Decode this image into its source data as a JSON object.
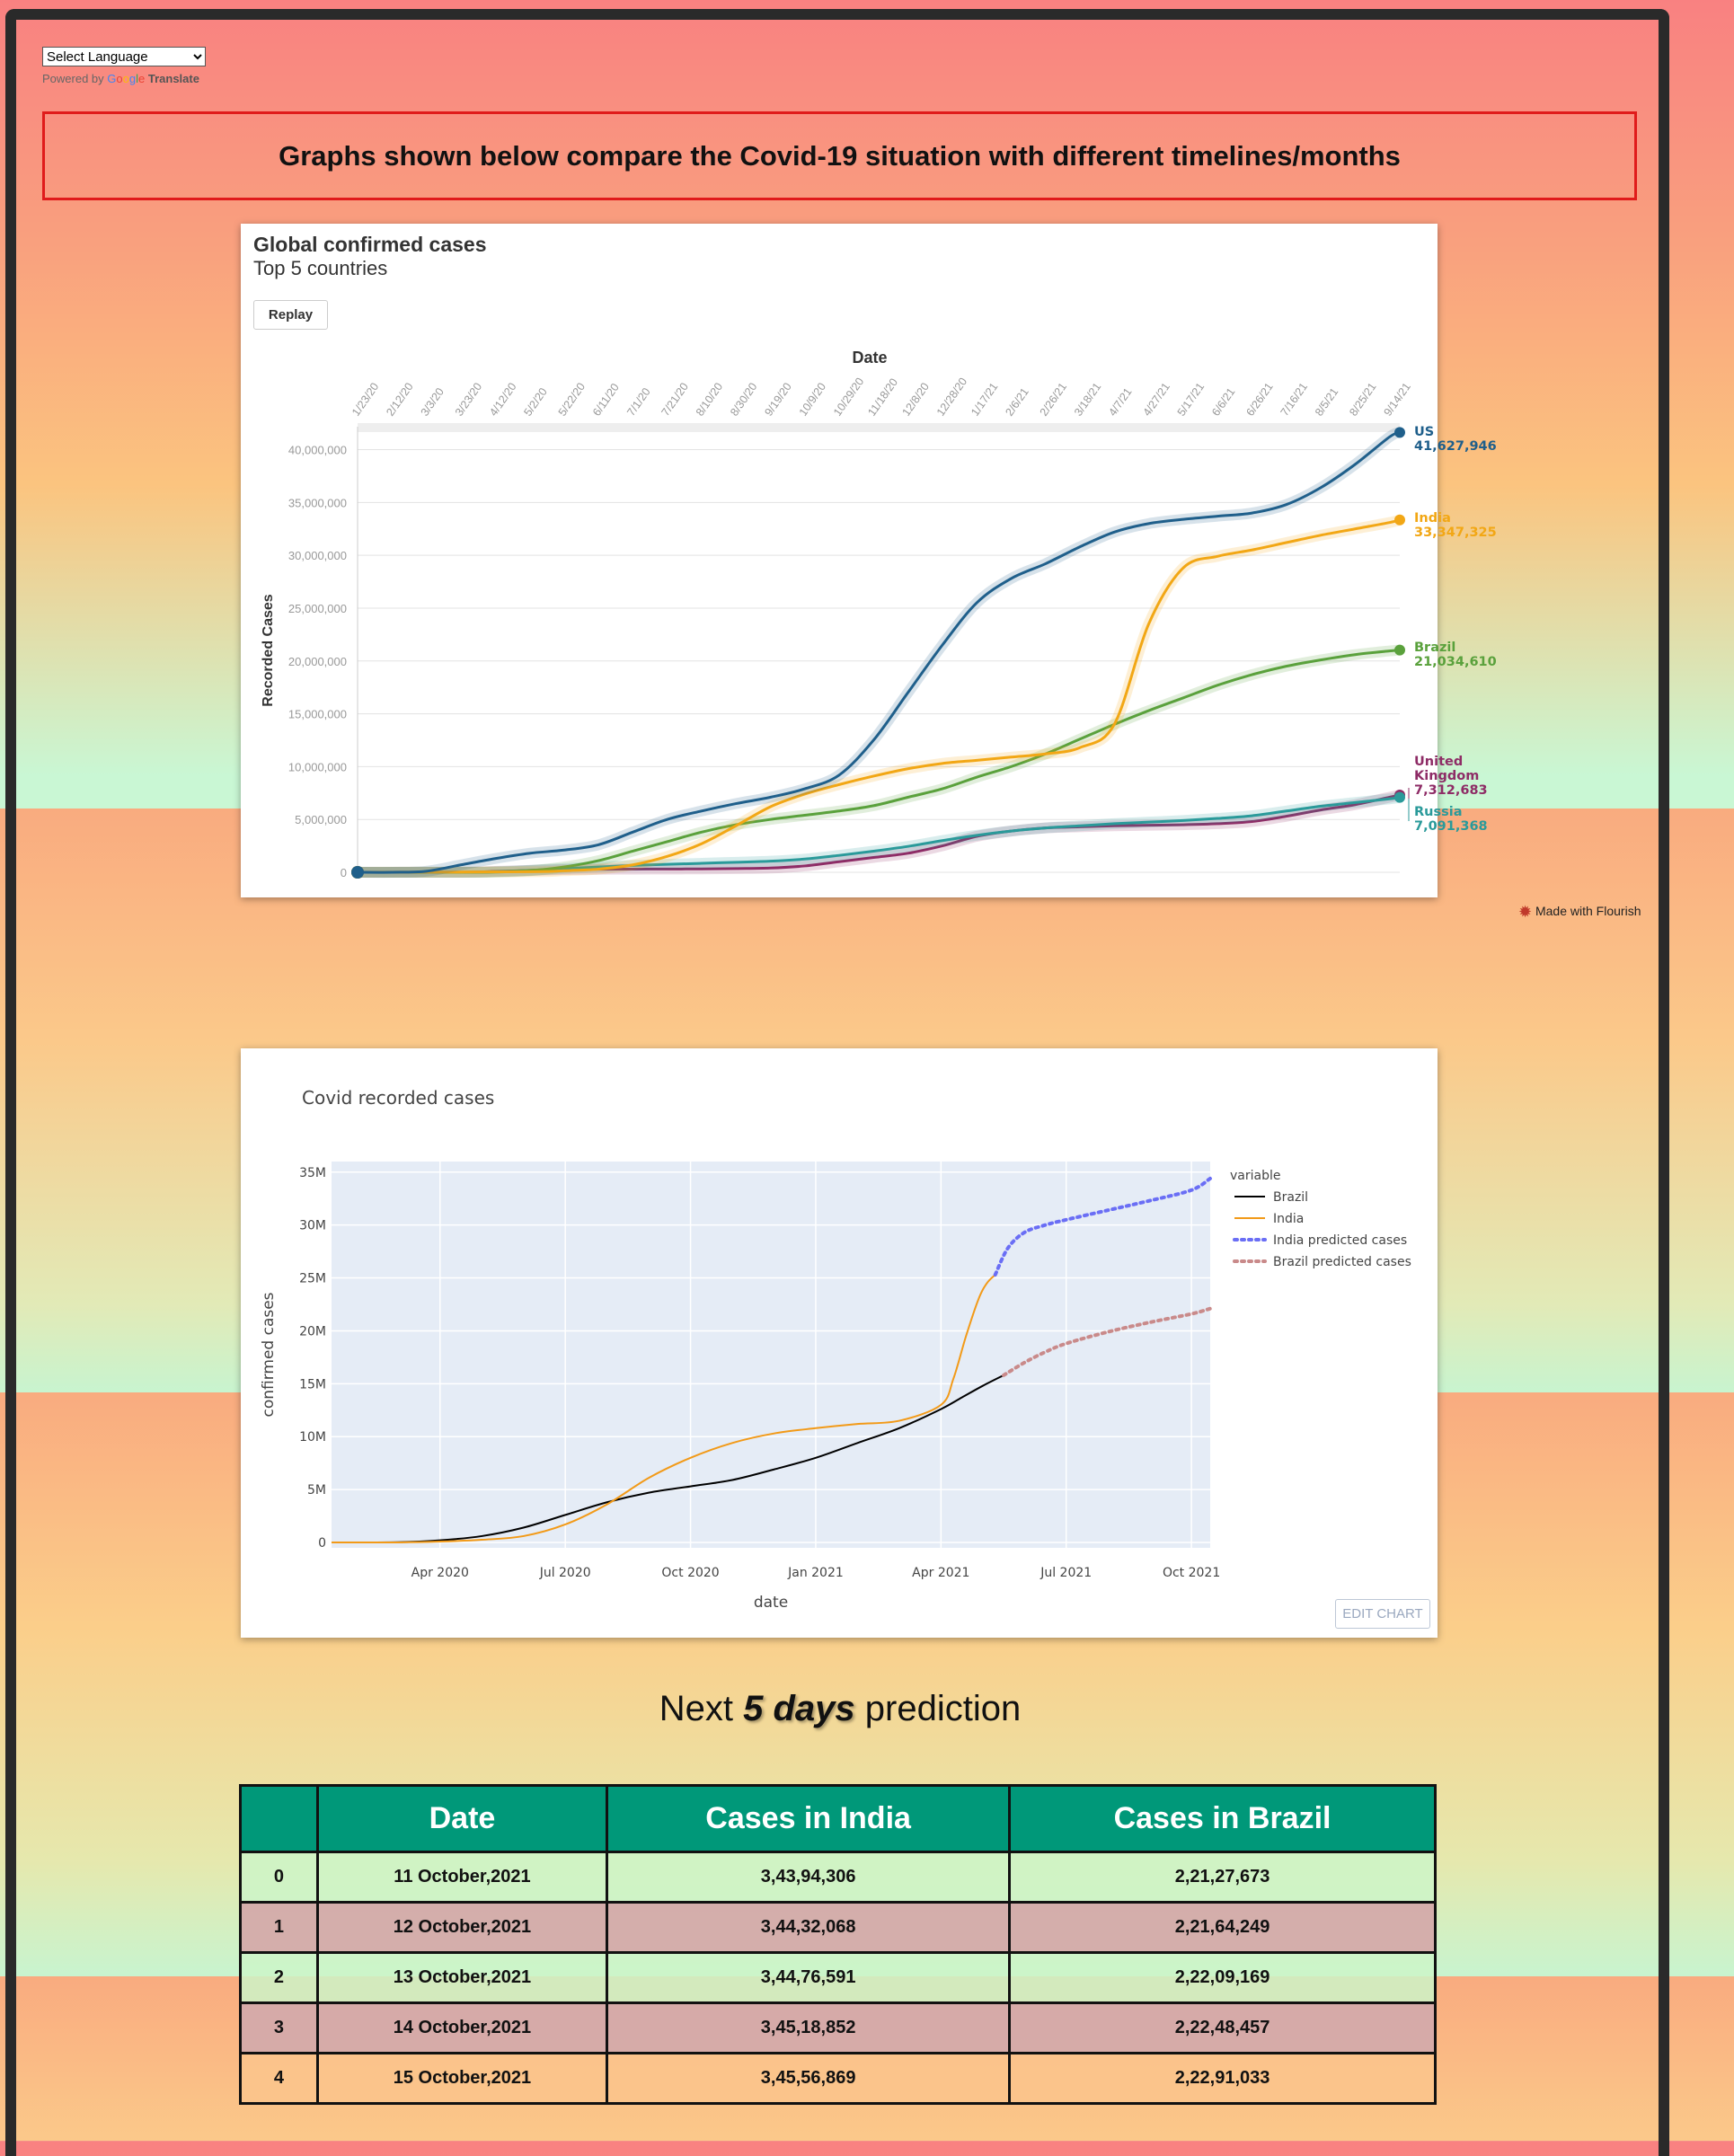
{
  "translate": {
    "select_label": "Select Language",
    "powered_by": "Powered by",
    "google_g1": "G",
    "google_o1": "o",
    "google_o2": "o",
    "google_g2": "g",
    "google_l": "l",
    "google_e": "e",
    "translate_word": "Translate"
  },
  "banner": {
    "text": "Graphs shown below compare the Covid-19 situation with different timelines/months"
  },
  "colors": {
    "us": "#1f5f8b",
    "india": "#f2a715",
    "brazil": "#5aa13c",
    "uk": "#8e2c66",
    "russia": "#2a9a9a"
  },
  "chart_data": [
    {
      "type": "line",
      "title": "Global confirmed cases",
      "subtitle": "Top 5 countries",
      "replay_label": "Replay",
      "xlabel": "Date",
      "ylabel": "Recorded Cases",
      "x_tick_labels": [
        "1/23/20",
        "2/12/20",
        "3/3/20",
        "3/23/20",
        "4/12/20",
        "5/2/20",
        "5/22/20",
        "6/11/20",
        "7/1/20",
        "7/21/20",
        "8/10/20",
        "8/30/20",
        "9/19/20",
        "10/9/20",
        "10/29/20",
        "11/18/20",
        "12/8/20",
        "12/28/20",
        "1/17/21",
        "2/6/21",
        "2/26/21",
        "3/18/21",
        "4/7/21",
        "4/27/21",
        "5/17/21",
        "6/6/21",
        "6/26/21",
        "7/16/21",
        "8/5/21",
        "8/25/21",
        "9/14/21"
      ],
      "y_ticks": [
        "0",
        "5,000,000",
        "10,000,000",
        "15,000,000",
        "20,000,000",
        "25,000,000",
        "30,000,000",
        "35,000,000",
        "40,000,000"
      ],
      "ylim": [
        0,
        42000000
      ],
      "x_index_range": [
        0,
        30.3
      ],
      "series": [
        {
          "key": "us",
          "name": "US",
          "end_label": "41,627,946",
          "x": [
            0,
            1,
            2,
            3,
            4,
            5,
            6,
            7,
            8,
            9,
            10,
            11,
            12,
            13,
            14,
            15,
            16,
            17,
            18,
            19,
            20,
            21,
            22,
            23,
            24,
            25,
            26,
            27,
            28,
            29,
            30,
            30.3
          ],
          "values": [
            0,
            10,
            100000,
            700000,
            1300000,
            1800000,
            2100000,
            2600000,
            3800000,
            5000000,
            5800000,
            6500000,
            7100000,
            7900000,
            9200000,
            12500000,
            17000000,
            21500000,
            25500000,
            27800000,
            29200000,
            30800000,
            32200000,
            33000000,
            33400000,
            33700000,
            34000000,
            34800000,
            36400000,
            38600000,
            41200000,
            41627946
          ]
        },
        {
          "key": "india",
          "name": "India",
          "end_label": "33,347,325",
          "x": [
            0,
            5,
            6,
            7,
            8,
            9,
            10,
            11,
            12,
            13,
            14,
            15,
            16,
            17,
            18,
            19,
            20,
            21,
            22,
            23,
            24,
            25,
            26,
            27,
            28,
            29,
            30,
            30.3
          ],
          "values": [
            0,
            50000,
            150000,
            300000,
            700000,
            1500000,
            2700000,
            4400000,
            6200000,
            7400000,
            8300000,
            9100000,
            9800000,
            10300000,
            10600000,
            10900000,
            11200000,
            11800000,
            14000000,
            23500000,
            28800000,
            29900000,
            30500000,
            31200000,
            31900000,
            32500000,
            33100000,
            33347325
          ]
        },
        {
          "key": "brazil",
          "name": "Brazil",
          "end_label": "21,034,610",
          "x": [
            0,
            3,
            4,
            5,
            6,
            7,
            8,
            9,
            10,
            11,
            12,
            13,
            14,
            15,
            16,
            17,
            18,
            19,
            20,
            21,
            22,
            23,
            24,
            25,
            26,
            27,
            28,
            29,
            30,
            30.3
          ],
          "values": [
            0,
            2000,
            20000,
            150000,
            500000,
            1100000,
            2000000,
            2900000,
            3800000,
            4500000,
            5000000,
            5400000,
            5800000,
            6300000,
            7100000,
            7900000,
            9000000,
            10000000,
            11200000,
            12600000,
            14000000,
            15300000,
            16500000,
            17700000,
            18700000,
            19500000,
            20100000,
            20600000,
            20950000,
            21034610
          ]
        },
        {
          "key": "uk",
          "name": "United Kingdom",
          "end_label": "7,312,683",
          "x": [
            0,
            3,
            4,
            5,
            6,
            7,
            8,
            9,
            10,
            11,
            12,
            13,
            14,
            15,
            16,
            17,
            18,
            19,
            20,
            21,
            22,
            23,
            24,
            25,
            26,
            27,
            28,
            29,
            30,
            30.3
          ],
          "values": [
            0,
            5000,
            80000,
            180000,
            260000,
            290000,
            300000,
            310000,
            320000,
            350000,
            400000,
            600000,
            1000000,
            1400000,
            1800000,
            2500000,
            3400000,
            3900000,
            4200000,
            4300000,
            4400000,
            4450000,
            4500000,
            4600000,
            4800000,
            5300000,
            5900000,
            6400000,
            7100000,
            7312683
          ]
        },
        {
          "key": "russia",
          "name": "Russia",
          "end_label": "7,091,368",
          "x": [
            0,
            3,
            4,
            5,
            6,
            7,
            8,
            9,
            10,
            11,
            12,
            13,
            14,
            15,
            16,
            17,
            18,
            19,
            20,
            21,
            22,
            23,
            24,
            25,
            26,
            27,
            28,
            29,
            30,
            30.3
          ],
          "values": [
            0,
            1000,
            50000,
            180000,
            350000,
            500000,
            650000,
            750000,
            850000,
            950000,
            1050000,
            1250000,
            1600000,
            2000000,
            2450000,
            3000000,
            3500000,
            3900000,
            4200000,
            4400000,
            4600000,
            4750000,
            4900000,
            5100000,
            5350000,
            5800000,
            6250000,
            6600000,
            6950000,
            7091368
          ]
        }
      ],
      "credit": "Made with Flourish"
    },
    {
      "type": "line",
      "title": "Covid recorded cases",
      "xlabel": "date",
      "ylabel": "confirmed cases",
      "legend_title": "variable",
      "legend_placement": "right",
      "edit_label": "EDIT CHART",
      "x_tick_labels": [
        "Apr 2020",
        "Jul 2020",
        "Oct 2020",
        "Jan 2021",
        "Apr 2021",
        "Jul 2021",
        "Oct 2021"
      ],
      "x_tick_months": [
        3,
        6,
        9,
        12,
        15,
        18,
        21
      ],
      "y_tick_labels": [
        "0",
        "5M",
        "10M",
        "15M",
        "20M",
        "25M",
        "30M",
        "35M"
      ],
      "ylim": [
        0,
        36000000
      ],
      "x_month_range": [
        0.4,
        21.45
      ],
      "series": [
        {
          "key": "brazil",
          "name": "Brazil",
          "color": "#000000",
          "dash": false,
          "x": [
            0.4,
            2,
            3,
            4,
            5,
            6,
            7,
            8,
            9,
            10,
            11,
            12,
            13,
            14,
            15,
            15.5,
            16,
            16.5
          ],
          "values": [
            0,
            20000,
            200000,
            600000,
            1400000,
            2600000,
            3800000,
            4700000,
            5300000,
            5900000,
            6900000,
            8000000,
            9400000,
            10800000,
            12600000,
            13700000,
            14800000,
            15800000
          ]
        },
        {
          "key": "india",
          "name": "India",
          "color": "#f29a18",
          "dash": false,
          "x": [
            0.4,
            2,
            3,
            4,
            5,
            6,
            7,
            8,
            9,
            10,
            11,
            12,
            13,
            14,
            15,
            15.3,
            15.6,
            15.9,
            16.1,
            16.3
          ],
          "values": [
            0,
            5000,
            80000,
            250000,
            600000,
            1700000,
            3600000,
            6100000,
            8000000,
            9400000,
            10300000,
            10800000,
            11200000,
            11500000,
            13000000,
            15500000,
            19500000,
            23000000,
            24500000,
            25300000
          ]
        },
        {
          "key": "india_pred",
          "name": "India predicted cases",
          "color": "#6a6ef5",
          "dash": true,
          "x": [
            16.3,
            16.6,
            17,
            17.5,
            18,
            19,
            20,
            21,
            21.45
          ],
          "values": [
            25300000,
            27800000,
            29300000,
            30000000,
            30500000,
            31400000,
            32300000,
            33300000,
            34400000
          ]
        },
        {
          "key": "brazil_pred",
          "name": "Brazil predicted cases",
          "color": "#c98a8a",
          "dash": true,
          "x": [
            16.5,
            17,
            17.5,
            18,
            19,
            20,
            21,
            21.45
          ],
          "values": [
            15800000,
            17000000,
            18000000,
            18800000,
            19900000,
            20800000,
            21600000,
            22100000
          ]
        }
      ]
    }
  ],
  "prediction": {
    "heading_pre": "Next ",
    "heading_em": "5 days",
    "heading_post": " prediction",
    "columns": [
      "",
      "Date",
      "Cases in India",
      "Cases in Brazil"
    ],
    "rows": [
      [
        "0",
        "11 October,2021",
        "3,43,94,306",
        "2,21,27,673"
      ],
      [
        "1",
        "12 October,2021",
        "3,44,32,068",
        "2,21,64,249"
      ],
      [
        "2",
        "13 October,2021",
        "3,44,76,591",
        "2,22,09,169"
      ],
      [
        "3",
        "14 October,2021",
        "3,45,18,852",
        "2,22,48,457"
      ],
      [
        "4",
        "15 October,2021",
        "3,45,56,869",
        "2,22,91,033"
      ]
    ]
  }
}
